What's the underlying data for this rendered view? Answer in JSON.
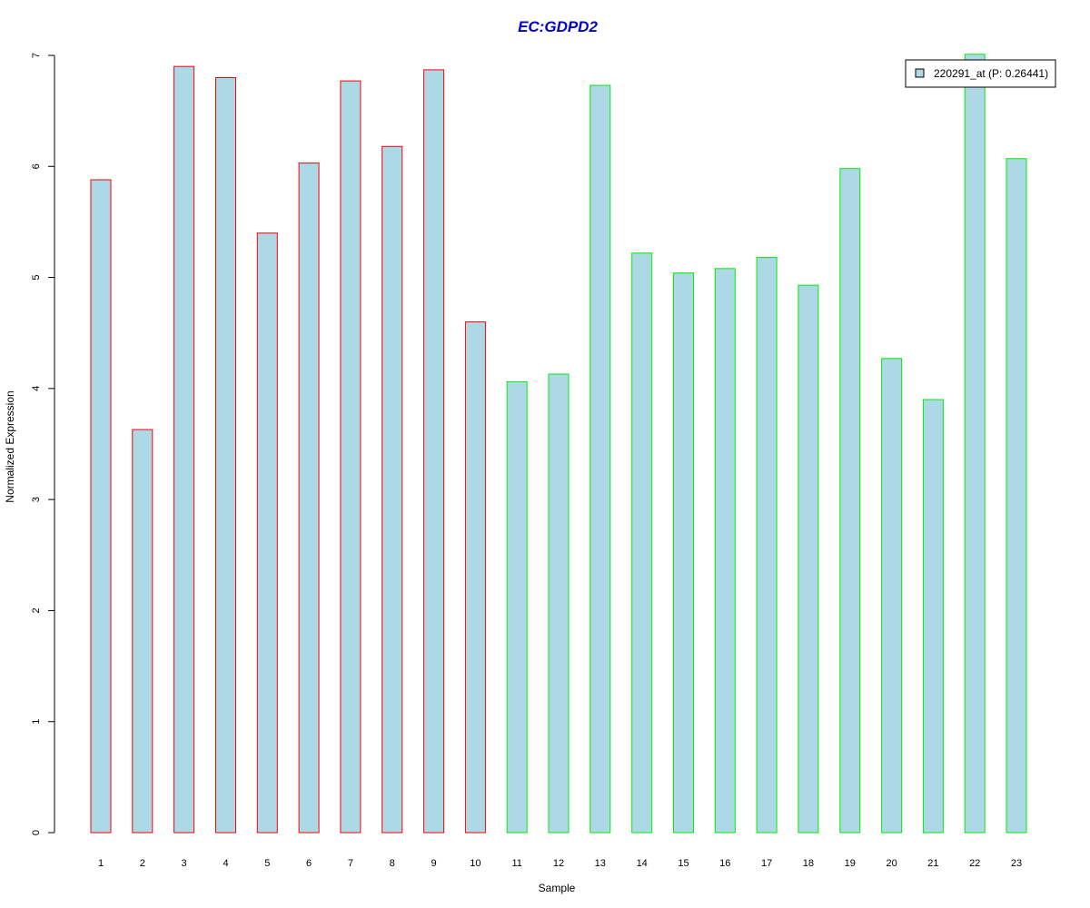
{
  "chart_data": {
    "type": "bar",
    "title": "EC:GDPD2",
    "xlabel": "Sample",
    "ylabel": "Normalized Expression",
    "categories": [
      "1",
      "2",
      "3",
      "4",
      "5",
      "6",
      "7",
      "8",
      "9",
      "10",
      "11",
      "12",
      "13",
      "14",
      "15",
      "16",
      "17",
      "18",
      "19",
      "20",
      "21",
      "22",
      "23"
    ],
    "series": [
      {
        "name": "220291_at (P: 0.26441)",
        "values": [
          5.88,
          3.63,
          6.9,
          6.8,
          5.4,
          6.03,
          6.77,
          6.18,
          6.87,
          4.6,
          4.06,
          4.13,
          6.73,
          5.22,
          5.04,
          5.08,
          5.18,
          4.93,
          5.98,
          4.27,
          3.9,
          7.01,
          6.07
        ],
        "fill": "#add8e6"
      }
    ],
    "groups": [
      1,
      1,
      1,
      1,
      1,
      1,
      1,
      1,
      1,
      1,
      2,
      2,
      2,
      2,
      2,
      2,
      2,
      2,
      2,
      2,
      2,
      2,
      2
    ],
    "group_colors": {
      "1": "#ff0000",
      "2": "#00ee00"
    },
    "y_ticks": [
      "0",
      "1",
      "2",
      "3",
      "4",
      "5",
      "6",
      "7"
    ],
    "ylim": [
      0,
      7
    ],
    "grid": false,
    "legend": {
      "position": "top-right",
      "label": "220291_at (P: 0.26441)"
    },
    "colors": {
      "title": "#0000cc",
      "bar_fill": "#add8e6"
    }
  }
}
